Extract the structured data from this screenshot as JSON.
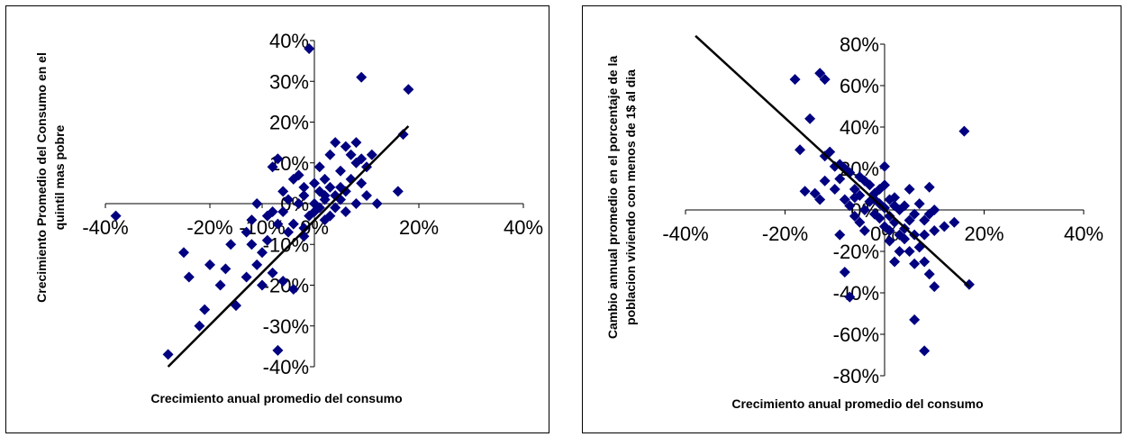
{
  "chart_data": [
    {
      "type": "scatter",
      "title": "",
      "xlabel": "Crecimiento anual promedio del consumo",
      "ylabel_lines": [
        "Crecimiento Promedio del Consumo en el",
        "quintil mas pobre"
      ],
      "xlim": [
        -0.4,
        0.4
      ],
      "ylim": [
        -0.4,
        0.4
      ],
      "x_ticks": [
        "-40%",
        "-20%",
        "-10%",
        "0%",
        "20%",
        "40%"
      ],
      "x_tick_values": [
        -0.4,
        -0.2,
        -0.1,
        0.0,
        0.2,
        0.4
      ],
      "y_ticks": [
        "-40%",
        "-30%",
        "-20%",
        "-10%",
        "0%",
        "10%",
        "20%",
        "30%",
        "40%"
      ],
      "y_tick_values": [
        -0.4,
        -0.3,
        -0.2,
        -0.1,
        0.0,
        0.1,
        0.2,
        0.3,
        0.4
      ],
      "marker_color": "#000080",
      "trendline": {
        "x": [
          -0.28,
          0.18
        ],
        "y": [
          -0.4,
          0.19
        ]
      },
      "points": [
        [
          -0.12,
          -0.1
        ],
        [
          -0.1,
          -0.12
        ],
        [
          -0.11,
          -0.15
        ],
        [
          -0.13,
          -0.18
        ],
        [
          -0.09,
          -0.03
        ],
        [
          -0.08,
          0.09
        ],
        [
          -0.07,
          0.11
        ],
        [
          -0.06,
          0.03
        ],
        [
          -0.05,
          -0.07
        ],
        [
          -0.04,
          -0.05
        ],
        [
          -0.03,
          0.0
        ],
        [
          -0.02,
          0.02
        ],
        [
          -0.01,
          -0.03
        ],
        [
          0.0,
          0.05
        ],
        [
          0.01,
          0.03
        ],
        [
          0.02,
          0.06
        ],
        [
          0.03,
          0.04
        ],
        [
          0.04,
          0.02
        ],
        [
          0.05,
          0.08
        ],
        [
          0.06,
          0.14
        ],
        [
          0.07,
          0.12
        ],
        [
          0.08,
          0.1
        ],
        [
          0.09,
          0.05
        ],
        [
          0.1,
          0.09
        ],
        [
          0.12,
          0.0
        ],
        [
          0.16,
          0.03
        ],
        [
          0.17,
          0.17
        ],
        [
          0.18,
          0.28
        ],
        [
          0.09,
          0.31
        ],
        [
          0.04,
          0.15
        ],
        [
          -0.06,
          -0.19
        ],
        [
          -0.08,
          -0.17
        ],
        [
          -0.1,
          -0.2
        ],
        [
          -0.07,
          -0.36
        ],
        [
          -0.04,
          -0.21
        ],
        [
          -0.02,
          -0.08
        ],
        [
          0.0,
          -0.02
        ],
        [
          0.02,
          -0.04
        ],
        [
          0.04,
          -0.01
        ],
        [
          0.06,
          -0.02
        ],
        [
          -0.15,
          -0.25
        ],
        [
          -0.17,
          -0.16
        ],
        [
          -0.18,
          -0.2
        ],
        [
          -0.2,
          -0.15
        ],
        [
          -0.21,
          -0.26
        ],
        [
          -0.22,
          -0.3
        ],
        [
          -0.24,
          -0.18
        ],
        [
          -0.25,
          -0.12
        ],
        [
          -0.28,
          -0.37
        ],
        [
          -0.38,
          -0.03
        ],
        [
          -0.01,
          0.38
        ],
        [
          -0.03,
          0.07
        ],
        [
          0.01,
          0.09
        ],
        [
          0.02,
          0.01
        ],
        [
          0.03,
          0.12
        ],
        [
          0.05,
          0.01
        ],
        [
          0.06,
          0.03
        ],
        [
          0.07,
          0.06
        ],
        [
          0.08,
          0.0
        ],
        [
          0.09,
          0.11
        ],
        [
          -0.05,
          0.01
        ],
        [
          -0.06,
          -0.02
        ],
        [
          -0.07,
          -0.05
        ],
        [
          -0.09,
          -0.09
        ],
        [
          -0.02,
          0.04
        ],
        [
          0.0,
          0.0
        ],
        [
          0.01,
          -0.01
        ],
        [
          0.02,
          0.02
        ],
        [
          0.03,
          -0.03
        ],
        [
          0.05,
          0.04
        ],
        [
          -0.16,
          -0.1
        ],
        [
          -0.13,
          -0.07
        ],
        [
          -0.12,
          -0.04
        ],
        [
          -0.11,
          0.0
        ],
        [
          -0.08,
          -0.02
        ],
        [
          0.1,
          0.02
        ],
        [
          0.11,
          0.12
        ],
        [
          0.08,
          0.15
        ],
        [
          -0.04,
          0.06
        ],
        [
          -0.02,
          -0.06
        ]
      ]
    },
    {
      "type": "scatter",
      "title": "",
      "xlabel": "Crecimiento anual promedio del consumo",
      "ylabel_lines": [
        "Cambio annual promedio en el porcentaje de la",
        "poblacion viviendo con menos de 1$ al dia"
      ],
      "xlim": [
        -0.4,
        0.4
      ],
      "ylim": [
        -0.8,
        0.8
      ],
      "x_ticks": [
        "-40%",
        "-20%",
        "0%",
        "20%",
        "40%"
      ],
      "x_tick_values": [
        -0.4,
        -0.2,
        0.0,
        0.2,
        0.4
      ],
      "y_ticks": [
        "-80%",
        "-60%",
        "-40%",
        "-20%",
        "0%",
        "20%",
        "40%",
        "60%",
        "80%"
      ],
      "y_tick_values": [
        -0.8,
        -0.6,
        -0.4,
        -0.2,
        0.0,
        0.2,
        0.4,
        0.6,
        0.8
      ],
      "marker_color": "#000080",
      "trendline": {
        "x": [
          -0.38,
          0.17
        ],
        "y": [
          0.84,
          -0.37
        ]
      },
      "points": [
        [
          -0.18,
          0.63
        ],
        [
          -0.13,
          0.66
        ],
        [
          -0.12,
          0.63
        ],
        [
          -0.15,
          0.44
        ],
        [
          -0.17,
          0.29
        ],
        [
          -0.16,
          0.09
        ],
        [
          -0.14,
          0.08
        ],
        [
          -0.12,
          0.26
        ],
        [
          -0.1,
          0.21
        ],
        [
          -0.09,
          0.15
        ],
        [
          -0.08,
          0.05
        ],
        [
          -0.07,
          0.02
        ],
        [
          -0.06,
          0.1
        ],
        [
          -0.05,
          0.07
        ],
        [
          -0.04,
          0.0
        ],
        [
          -0.03,
          0.04
        ],
        [
          -0.02,
          -0.02
        ],
        [
          -0.01,
          0.03
        ],
        [
          0.0,
          0.01
        ],
        [
          0.01,
          -0.03
        ],
        [
          0.02,
          -0.06
        ],
        [
          0.03,
          0.0
        ],
        [
          0.04,
          -0.09
        ],
        [
          0.05,
          -0.05
        ],
        [
          0.06,
          -0.12
        ],
        [
          0.07,
          -0.18
        ],
        [
          0.08,
          -0.25
        ],
        [
          0.09,
          -0.31
        ],
        [
          0.1,
          -0.37
        ],
        [
          0.16,
          0.38
        ],
        [
          0.17,
          -0.36
        ],
        [
          0.06,
          -0.53
        ],
        [
          0.08,
          -0.68
        ],
        [
          -0.07,
          -0.42
        ],
        [
          -0.08,
          -0.3
        ],
        [
          -0.09,
          -0.12
        ],
        [
          0.0,
          0.21
        ],
        [
          0.01,
          -0.15
        ],
        [
          0.02,
          -0.25
        ],
        [
          0.03,
          -0.2
        ],
        [
          0.04,
          0.02
        ],
        [
          0.05,
          0.1
        ],
        [
          0.06,
          -0.02
        ],
        [
          0.07,
          0.03
        ],
        [
          0.09,
          0.11
        ],
        [
          0.1,
          -0.1
        ],
        [
          0.12,
          -0.08
        ],
        [
          0.14,
          -0.06
        ],
        [
          -0.11,
          0.28
        ],
        [
          -0.1,
          0.1
        ],
        [
          -0.06,
          -0.03
        ],
        [
          -0.05,
          -0.06
        ],
        [
          -0.04,
          -0.1
        ],
        [
          -0.03,
          0.12
        ],
        [
          -0.02,
          0.08
        ],
        [
          -0.01,
          -0.04
        ],
        [
          0.0,
          -0.08
        ],
        [
          0.01,
          0.05
        ],
        [
          0.02,
          0.02
        ],
        [
          0.03,
          -0.12
        ],
        [
          -0.07,
          0.18
        ],
        [
          -0.06,
          0.06
        ],
        [
          -0.04,
          0.14
        ],
        [
          -0.02,
          0.05
        ],
        [
          0.0,
          0.12
        ],
        [
          0.02,
          0.06
        ],
        [
          0.04,
          -0.14
        ],
        [
          0.05,
          -0.2
        ],
        [
          0.06,
          -0.26
        ],
        [
          0.08,
          -0.12
        ],
        [
          -0.13,
          0.05
        ],
        [
          -0.12,
          0.14
        ],
        [
          -0.09,
          0.22
        ],
        [
          -0.08,
          0.2
        ],
        [
          -0.05,
          0.16
        ],
        [
          0.08,
          -0.05
        ],
        [
          0.09,
          -0.02
        ],
        [
          0.1,
          0.0
        ],
        [
          -0.01,
          0.1
        ],
        [
          0.01,
          -0.1
        ]
      ]
    }
  ]
}
